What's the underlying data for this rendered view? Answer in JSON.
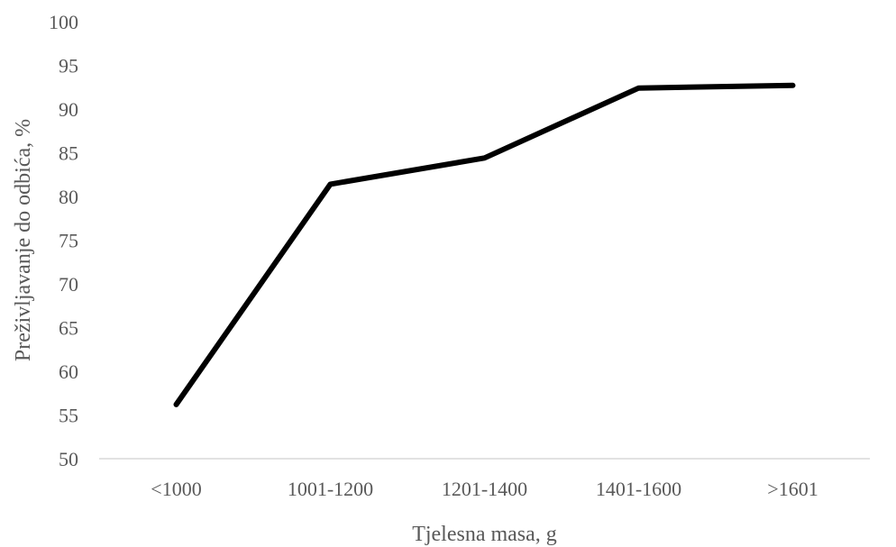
{
  "chart_data": {
    "type": "line",
    "title": "",
    "xlabel": "Tjelesna masa, g",
    "ylabel": "Preživljavanje do odbića, %",
    "categories": [
      "<1000",
      "1001-1200",
      "1201-1400",
      "1401-1600",
      ">1601"
    ],
    "series": [
      {
        "values": [
          56.2,
          81.4,
          84.4,
          92.4,
          92.7
        ],
        "color": "#000000"
      }
    ],
    "ylim": [
      50,
      100
    ],
    "yticks": [
      50,
      55,
      60,
      65,
      70,
      75,
      80,
      85,
      90,
      95,
      100
    ],
    "grid": false,
    "legend": "none"
  }
}
